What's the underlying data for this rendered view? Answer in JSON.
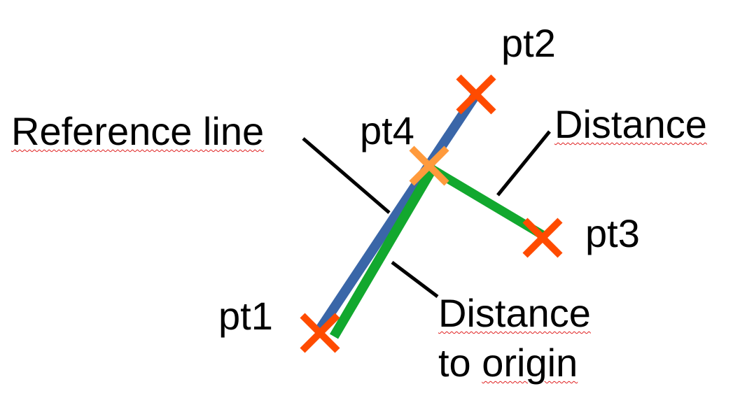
{
  "colors": {
    "reference_line": "#3a66a8",
    "distance_line": "#12a82e",
    "marker": "#ff4b00",
    "projection_marker": "#ff9a3c",
    "leader": "#000000",
    "spellcheck": "#e02020"
  },
  "labels": {
    "pt1": "pt1",
    "pt2": "pt2",
    "pt3": "pt3",
    "pt4": "pt4",
    "reference_line": "Reference line",
    "distance": "Distance",
    "distance_to_origin_line1": "Distance",
    "distance_to_origin_line2": "to origin"
  }
}
